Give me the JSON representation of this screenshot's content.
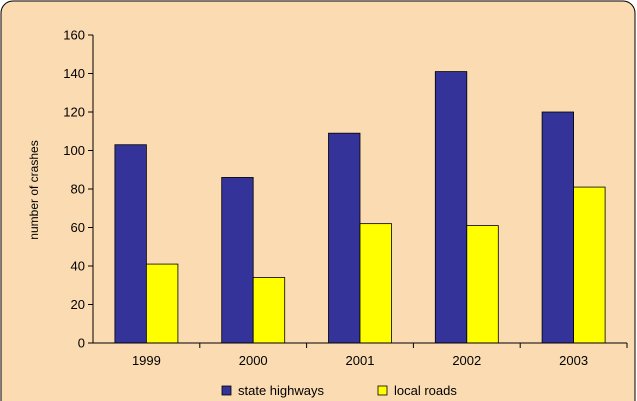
{
  "chart_data": {
    "type": "bar",
    "title": "",
    "xlabel": "",
    "ylabel": "number of crashes",
    "categories": [
      "1999",
      "2000",
      "2001",
      "2002",
      "2003"
    ],
    "series": [
      {
        "name": "state highways",
        "values": [
          103,
          86,
          109,
          141,
          120
        ],
        "color": "#333399"
      },
      {
        "name": "local roads",
        "values": [
          41,
          34,
          62,
          61,
          81
        ],
        "color": "#ffff00"
      }
    ],
    "ylim": [
      0,
      160
    ],
    "yticks": [
      "0",
      "20",
      "40",
      "60",
      "80",
      "100",
      "120",
      "140",
      "160"
    ],
    "grid": false,
    "legend_position": "bottom",
    "background_color": "#fbdcb2",
    "border_color": "#000000"
  }
}
